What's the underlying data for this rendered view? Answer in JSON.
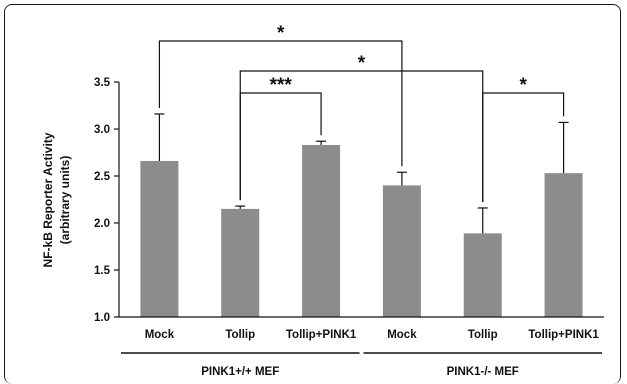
{
  "chart_data": {
    "type": "bar",
    "ylabel": "NF-kB Reporter Activity",
    "ylabel_sub": "(arbitrary units)",
    "ylim": [
      1.0,
      3.5
    ],
    "yticks": [
      "1.0",
      "1.5",
      "2.0",
      "2.5",
      "3.0",
      "3.5"
    ],
    "categories": [
      "Mock",
      "Tollip",
      "Tollip+PINK1",
      "Mock",
      "Tollip",
      "Tollip+PINK1"
    ],
    "values": [
      2.66,
      2.15,
      2.83,
      2.4,
      1.89,
      2.53
    ],
    "errors": [
      0.5,
      0.03,
      0.04,
      0.14,
      0.27,
      0.54
    ],
    "bar_color": "#8c8c8c",
    "groups": [
      {
        "label": "PINK1+/+ MEF",
        "categories": [
          0,
          1,
          2
        ]
      },
      {
        "label": "PINK1-/- MEF",
        "categories": [
          3,
          4,
          5
        ]
      }
    ],
    "significance": [
      {
        "from": 0,
        "to": 3,
        "label": "*"
      },
      {
        "from": 1,
        "to": 4,
        "label": "*"
      },
      {
        "from": 1,
        "to": 2,
        "label": "***"
      },
      {
        "from": 4,
        "to": 5,
        "label": "*"
      }
    ]
  }
}
